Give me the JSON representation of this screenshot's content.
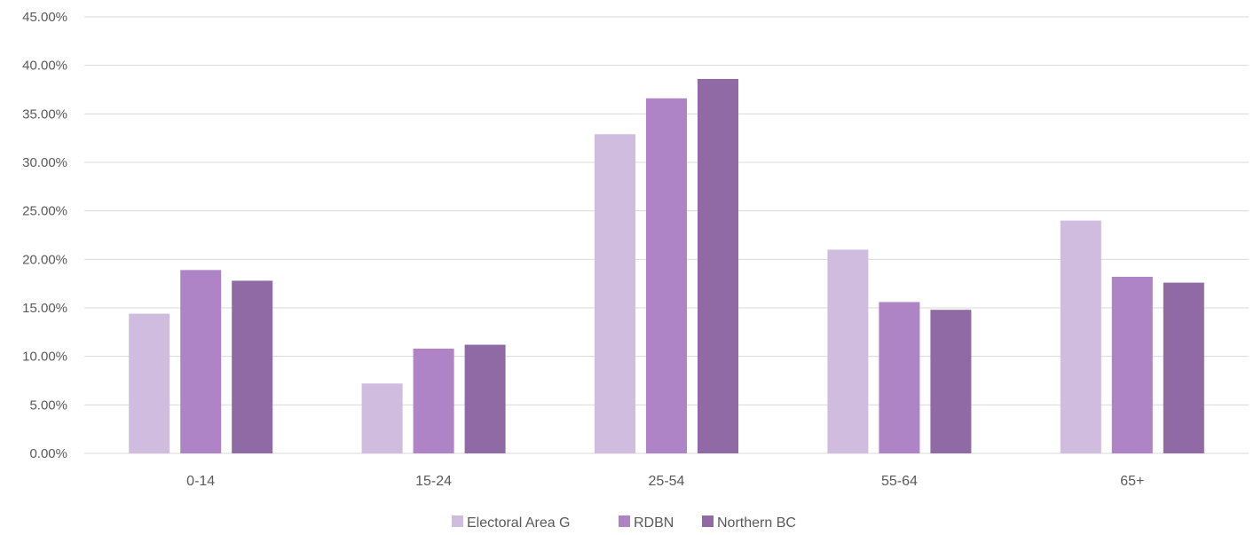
{
  "chart_data": {
    "type": "bar",
    "title": "",
    "xlabel": "",
    "ylabel": "",
    "categories": [
      "0-14",
      "15-24",
      "25-54",
      "55-64",
      "65+"
    ],
    "series": [
      {
        "name": "Electoral Area G",
        "color": "#d0bcde",
        "values": [
          14.4,
          7.2,
          32.9,
          21.0,
          24.0
        ]
      },
      {
        "name": "RDBN",
        "color": "#ae84c6",
        "values": [
          18.9,
          10.8,
          36.6,
          15.6,
          18.2
        ]
      },
      {
        "name": "Northern BC",
        "color": "#8f6aa5",
        "values": [
          17.8,
          11.2,
          38.6,
          14.8,
          17.6
        ]
      }
    ],
    "ylim": [
      0,
      45
    ],
    "yticks": [
      0,
      5,
      10,
      15,
      20,
      25,
      30,
      35,
      40,
      45
    ],
    "ytick_labels": [
      "0.00%",
      "5.00%",
      "10.00%",
      "15.00%",
      "20.00%",
      "25.00%",
      "30.00%",
      "35.00%",
      "40.00%",
      "45.00%"
    ],
    "grid": true,
    "legend_position": "bottom",
    "gridline_color": "#d9d9d9"
  }
}
